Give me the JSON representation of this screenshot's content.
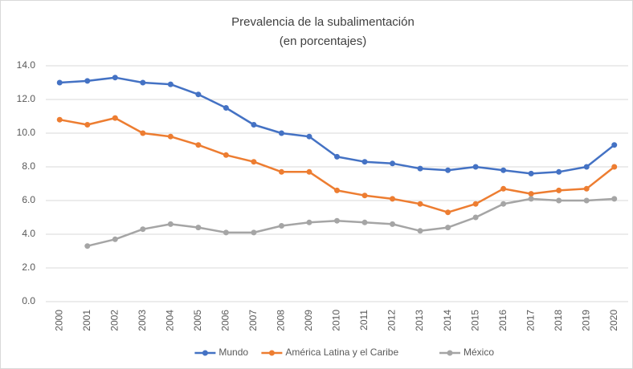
{
  "chart_data": {
    "type": "line",
    "title": "Prevalencia de la subalimentación",
    "subtitle": "(en porcentajes)",
    "categories": [
      "2000",
      "2001",
      "2002",
      "2003",
      "2004",
      "2005",
      "2006",
      "2007",
      "2008",
      "2009",
      "2010",
      "2011",
      "2012",
      "2013",
      "2014",
      "2015",
      "2016",
      "2017",
      "2018",
      "2019",
      "2020"
    ],
    "series": [
      {
        "name": "Mundo",
        "color": "#4472c4",
        "values": [
          13.0,
          13.1,
          13.3,
          13.0,
          12.9,
          12.3,
          11.5,
          10.5,
          10.0,
          9.8,
          8.6,
          8.3,
          8.2,
          7.9,
          7.8,
          8.0,
          7.8,
          7.6,
          7.7,
          8.0,
          9.3
        ]
      },
      {
        "name": "América Latina y el Caribe",
        "color": "#ed7d31",
        "values": [
          10.8,
          10.5,
          10.9,
          10.0,
          9.8,
          9.3,
          8.7,
          8.3,
          7.7,
          7.7,
          6.6,
          6.3,
          6.1,
          5.8,
          5.3,
          5.8,
          6.7,
          6.4,
          6.6,
          6.7,
          8.0
        ]
      },
      {
        "name": "México",
        "color": "#a5a5a5",
        "values": [
          null,
          3.3,
          3.7,
          4.3,
          4.6,
          4.4,
          4.1,
          4.1,
          4.5,
          4.7,
          4.8,
          4.7,
          4.6,
          4.2,
          4.4,
          5.0,
          5.8,
          6.1,
          6.0,
          6.0,
          6.1
        ]
      }
    ],
    "ylim": [
      0,
      14
    ],
    "yticks": [
      {
        "value": 0,
        "label": "0.0"
      },
      {
        "value": 2,
        "label": "2.0"
      },
      {
        "value": 4,
        "label": "4.0"
      },
      {
        "value": 6,
        "label": "6.0"
      },
      {
        "value": 8,
        "label": "8.0"
      },
      {
        "value": 10,
        "label": "10.0"
      },
      {
        "value": 12,
        "label": "12.0"
      },
      {
        "value": 14,
        "label": "14.0"
      }
    ],
    "grid": true,
    "legend": "bottom"
  }
}
